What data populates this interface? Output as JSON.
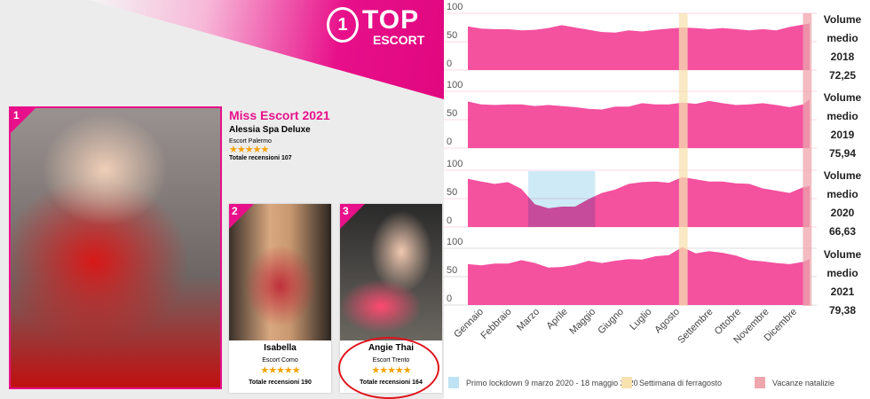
{
  "site": {
    "logo_number": "1",
    "logo_top": "TOP",
    "logo_sub": "ESCORT"
  },
  "winner": {
    "rank": "1",
    "title": "Miss Escort 2021",
    "name": "Alessia Spa Deluxe",
    "city": "Escort Palermo",
    "rating": 5,
    "stars": "★★★★★",
    "reviews": "Totale recensioni 107"
  },
  "cards": [
    {
      "rank": "2",
      "name": "Isabella",
      "city": "Escort Como",
      "rating": 5,
      "stars": "★★★★★",
      "reviews": "Totale recensioni 190"
    },
    {
      "rank": "3",
      "name": "Angie Thai",
      "city": "Escort Trento",
      "rating": 5,
      "stars": "★★★★★",
      "reviews": "Totale recensioni 164",
      "highlighted": true
    }
  ],
  "colors": {
    "accent": "#e8108a",
    "area": "#f4519f",
    "lockdown": "#bfe3f4",
    "ferragosto": "#f7e2b0",
    "natale": "#eea6ac"
  },
  "chart_data": {
    "type": "area",
    "xlabel": "",
    "ylabel": "",
    "x_unit": "week",
    "x": [
      1,
      3,
      5,
      7,
      9,
      11,
      13,
      15,
      17,
      19,
      21,
      23,
      25,
      27,
      29,
      31,
      33,
      35,
      37,
      39,
      41,
      43,
      45,
      47,
      49,
      51,
      52
    ],
    "month_labels": [
      "Gennaio",
      "Febbraio",
      "Marzo",
      "Aprile",
      "Maggio",
      "Giugno",
      "Luglio",
      "Agosto",
      "Settembre",
      "Ottobre",
      "Novembre",
      "Dicembre"
    ],
    "yticks": [
      "0",
      "50",
      "100"
    ],
    "ylim": [
      0,
      100
    ],
    "series": [
      {
        "label_lines": [
          "Volume",
          "medio 2018"
        ],
        "average": "72,25",
        "values": [
          77,
          73,
          72,
          72,
          70,
          71,
          74,
          79,
          75,
          71,
          67,
          66,
          70,
          68,
          71,
          73,
          75,
          74,
          72,
          74,
          72,
          70,
          72,
          70,
          76,
          80,
          82
        ]
      },
      {
        "label_lines": [
          "Volume",
          "medio 2019"
        ],
        "average": "75,94",
        "values": [
          82,
          77,
          76,
          77,
          77,
          74,
          76,
          74,
          72,
          69,
          68,
          73,
          73,
          79,
          77,
          77,
          80,
          78,
          83,
          79,
          76,
          77,
          79,
          76,
          72,
          77,
          86
        ]
      },
      {
        "label_lines": [
          "Volume",
          "medio 2020"
        ],
        "average": "66,63",
        "values": [
          85,
          80,
          76,
          79,
          67,
          40,
          33,
          36,
          36,
          49,
          60,
          66,
          76,
          79,
          80,
          78,
          88,
          84,
          80,
          80,
          77,
          76,
          68,
          64,
          60,
          70,
          72
        ]
      },
      {
        "label_lines": [
          "Volume",
          "medio 2021"
        ],
        "average": "79,38",
        "values": [
          72,
          70,
          73,
          73,
          79,
          74,
          66,
          67,
          71,
          78,
          74,
          78,
          81,
          80,
          86,
          88,
          102,
          91,
          95,
          92,
          87,
          79,
          77,
          74,
          72,
          76,
          81
        ]
      }
    ],
    "bands": [
      {
        "label": "Primo lockdown 9 marzo 2020 - 18 maggio 2020",
        "from_week": 10,
        "to_week": 20,
        "panel": 2,
        "color": "#bfe3f4"
      },
      {
        "label": "Settimana di ferragosto",
        "from_week": 32.5,
        "to_week": 33.8,
        "panel": "all",
        "color": "#f7e2b0"
      },
      {
        "label": "Vacanze natalizie",
        "from_week": 51,
        "to_week": 52.3,
        "panel": "all",
        "color": "#eea6ac"
      }
    ],
    "legend_position": "bottom-left"
  }
}
